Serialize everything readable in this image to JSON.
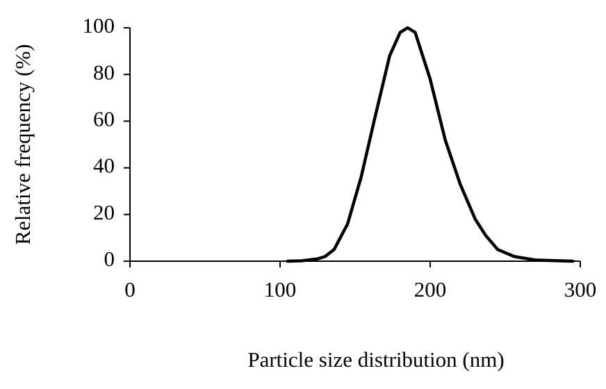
{
  "chart_data": {
    "type": "line",
    "x_label": "Particle size distribution (nm)",
    "y_label": "Relative frequency (%)",
    "series": [
      {
        "color": "#000000",
        "x": [
          105,
          115,
          125,
          130,
          136,
          145,
          154,
          163,
          173,
          180,
          185,
          190,
          200,
          210,
          220,
          230,
          237,
          245,
          256,
          270,
          295
        ],
        "values": [
          0,
          0.2,
          1,
          2,
          5,
          16,
          36,
          61,
          88,
          98,
          100,
          98,
          78,
          52,
          33,
          18,
          11,
          5,
          2,
          0.5,
          0
        ]
      }
    ],
    "xlim": [
      0,
      300
    ],
    "xticks": [
      0,
      100,
      200,
      300
    ],
    "ylim": [
      0,
      100
    ],
    "yticks": [
      0,
      20,
      40,
      60,
      80,
      100
    ],
    "grid": false
  }
}
